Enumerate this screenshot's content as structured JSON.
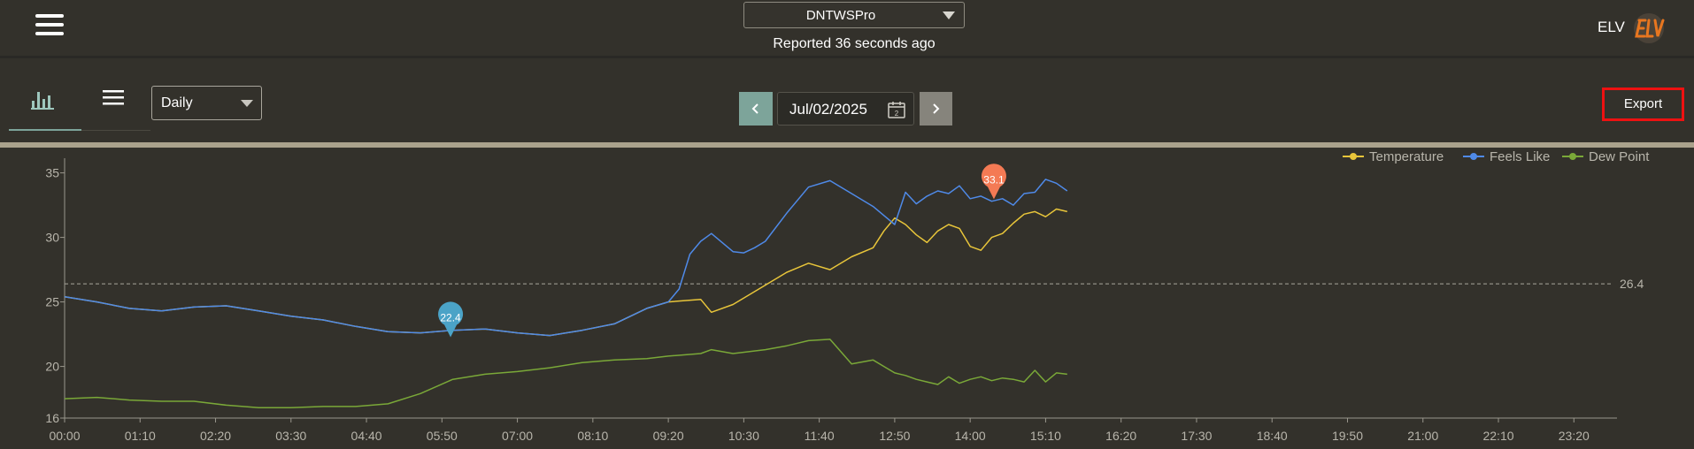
{
  "header": {
    "device": "DNTWSPro",
    "reported": "Reported 36 seconds ago",
    "brand_text": "ELV",
    "brand_logo": "ELV"
  },
  "toolbar": {
    "period": "Daily",
    "date": "Jul/02/2025",
    "export_label": "Export"
  },
  "icons": {
    "menu": "hamburger-icon",
    "chart_tab": "bar-chart-icon",
    "list_tab": "list-icon",
    "calendar": "calendar-icon",
    "prev": "chevron-left-icon",
    "next": "chevron-right-icon"
  },
  "colors": {
    "temperature": "#e8c53a",
    "feels_like": "#4f8ae8",
    "dew_point": "#7aa838",
    "min_marker": "#4ba3c7",
    "max_marker": "#f47a54",
    "export_border": "#ee1111"
  },
  "chart_data": {
    "type": "line",
    "x_ticks": [
      "00:00",
      "01:10",
      "02:20",
      "03:30",
      "04:40",
      "05:50",
      "07:00",
      "08:10",
      "09:20",
      "10:30",
      "11:40",
      "12:50",
      "14:00",
      "15:10",
      "16:20",
      "17:30",
      "18:40",
      "19:50",
      "21:00",
      "22:10",
      "23:20"
    ],
    "xlim": [
      0,
      1440
    ],
    "y_ticks": [
      16,
      20,
      25,
      30,
      35
    ],
    "ylim": [
      16,
      36
    ],
    "grid": false,
    "legend_position": "top-right",
    "series": [
      {
        "name": "Temperature",
        "x": [
          0,
          30,
          60,
          90,
          120,
          150,
          180,
          210,
          240,
          270,
          300,
          330,
          360,
          390,
          420,
          450,
          480,
          510,
          540,
          560,
          590,
          600,
          620,
          650,
          670,
          690,
          710,
          730,
          750,
          760,
          770,
          780,
          790,
          800,
          810,
          820,
          830,
          840,
          850,
          860,
          870,
          880,
          890,
          900,
          910,
          920,
          930
        ],
        "y": [
          25.4,
          25.0,
          24.5,
          24.3,
          24.6,
          24.7,
          24.3,
          23.9,
          23.6,
          23.1,
          22.7,
          22.6,
          22.8,
          22.9,
          22.6,
          22.4,
          22.8,
          23.3,
          24.5,
          25.0,
          25.2,
          24.2,
          24.8,
          26.3,
          27.3,
          28.0,
          27.5,
          28.5,
          29.2,
          30.5,
          31.5,
          31.0,
          30.2,
          29.6,
          30.5,
          31.0,
          30.7,
          29.3,
          29.0,
          30.0,
          30.3,
          31.1,
          31.8,
          32.0,
          31.6,
          32.2,
          32.0
        ]
      },
      {
        "name": "Feels Like",
        "x": [
          0,
          30,
          60,
          90,
          120,
          150,
          180,
          210,
          240,
          270,
          300,
          330,
          360,
          390,
          420,
          450,
          480,
          510,
          540,
          560,
          570,
          580,
          590,
          600,
          620,
          630,
          640,
          650,
          670,
          690,
          710,
          730,
          750,
          760,
          770,
          780,
          790,
          800,
          810,
          820,
          830,
          840,
          850,
          860,
          870,
          880,
          890,
          900,
          910,
          920,
          930
        ],
        "y": [
          25.4,
          25.0,
          24.5,
          24.3,
          24.6,
          24.7,
          24.3,
          23.9,
          23.6,
          23.1,
          22.7,
          22.6,
          22.8,
          22.9,
          22.6,
          22.4,
          22.8,
          23.3,
          24.5,
          25.0,
          26.0,
          28.7,
          29.7,
          30.3,
          28.9,
          28.8,
          29.2,
          29.7,
          31.9,
          33.9,
          34.4,
          33.4,
          32.4,
          31.7,
          31.0,
          33.5,
          32.6,
          33.2,
          33.6,
          33.4,
          34.0,
          33.0,
          33.2,
          32.8,
          33.0,
          32.5,
          33.4,
          33.5,
          34.5,
          34.2,
          33.6
        ]
      },
      {
        "name": "Dew Point",
        "x": [
          0,
          30,
          60,
          90,
          120,
          150,
          180,
          210,
          240,
          270,
          300,
          330,
          360,
          390,
          420,
          450,
          480,
          510,
          540,
          560,
          590,
          600,
          620,
          650,
          670,
          690,
          710,
          730,
          750,
          760,
          770,
          780,
          790,
          800,
          810,
          820,
          830,
          840,
          850,
          860,
          870,
          880,
          890,
          900,
          910,
          920,
          930
        ],
        "y": [
          17.5,
          17.6,
          17.4,
          17.3,
          17.3,
          17.0,
          16.8,
          16.8,
          16.9,
          16.9,
          17.1,
          17.9,
          19.0,
          19.4,
          19.6,
          19.9,
          20.3,
          20.5,
          20.6,
          20.8,
          21.0,
          21.3,
          21.0,
          21.3,
          21.6,
          22.0,
          22.1,
          20.2,
          20.5,
          20.0,
          19.5,
          19.3,
          19.0,
          18.8,
          18.6,
          19.2,
          18.7,
          19.0,
          19.2,
          18.9,
          19.1,
          19.0,
          18.8,
          19.7,
          18.8,
          19.5,
          19.4
        ]
      }
    ],
    "reference_line": {
      "value": 26.4,
      "label": "26.4"
    },
    "markers": [
      {
        "label": "22.4",
        "x": 358,
        "y": 22.4,
        "kind": "min"
      },
      {
        "label": "33.1",
        "x": 862,
        "y": 33.1,
        "kind": "max"
      }
    ]
  }
}
